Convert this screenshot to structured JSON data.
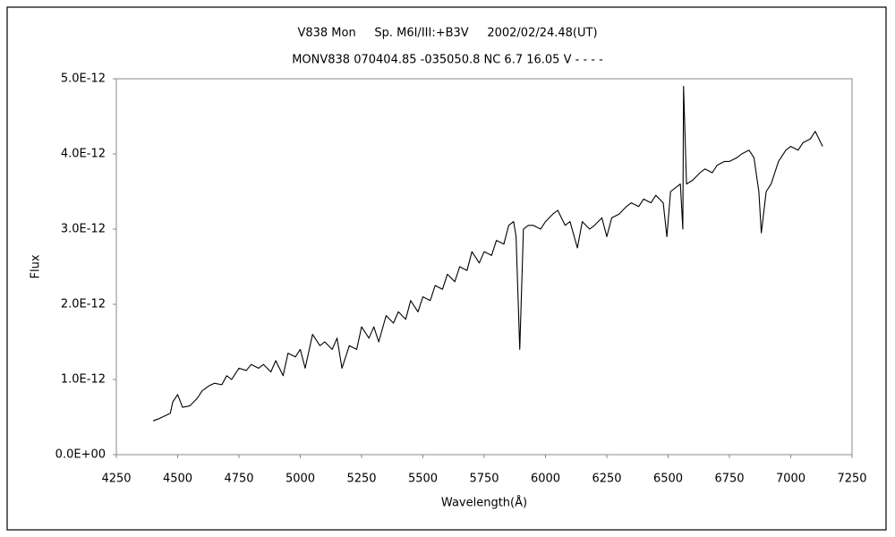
{
  "chart_data": {
    "type": "line",
    "title": "V838 Mon     Sp. M6I/III:+B3V     2002/02/24.48(UT)",
    "subtitle": "MONV838 070404.85 -035050.8 NC 6.7 16.05 V - - - -",
    "x_label": "Wavelength(Å)",
    "y_label": "Flux",
    "xlim": [
      4250,
      7250
    ],
    "xticks": [
      4250,
      4500,
      4750,
      5000,
      5250,
      5500,
      5750,
      6000,
      6250,
      6500,
      6750,
      7000,
      7250
    ],
    "ylim": [
      0,
      5e-12
    ],
    "yticks": [
      {
        "value": 0,
        "label": "0.0E+00"
      },
      {
        "value": 1e-12,
        "label": "1.0E-12"
      },
      {
        "value": 2e-12,
        "label": "2.0E-12"
      },
      {
        "value": 3e-12,
        "label": "3.0E-12"
      },
      {
        "value": 4e-12,
        "label": "4.0E-12"
      },
      {
        "value": 5e-12,
        "label": "5.0E-12"
      }
    ],
    "series": [
      {
        "color": "#000000",
        "x": [
          4400,
          4425,
          4450,
          4470,
          4480,
          4500,
          4520,
          4550,
          4580,
          4600,
          4630,
          4650,
          4680,
          4700,
          4720,
          4750,
          4780,
          4800,
          4830,
          4850,
          4880,
          4900,
          4930,
          4950,
          4980,
          5000,
          5020,
          5050,
          5080,
          5100,
          5130,
          5150,
          5170,
          5200,
          5230,
          5250,
          5280,
          5300,
          5320,
          5350,
          5380,
          5400,
          5430,
          5450,
          5480,
          5500,
          5530,
          5550,
          5580,
          5600,
          5630,
          5650,
          5680,
          5700,
          5730,
          5750,
          5780,
          5800,
          5830,
          5850,
          5870,
          5880,
          5895,
          5910,
          5930,
          5950,
          5980,
          6000,
          6030,
          6050,
          6080,
          6100,
          6130,
          6150,
          6180,
          6200,
          6230,
          6250,
          6270,
          6300,
          6330,
          6350,
          6380,
          6400,
          6430,
          6450,
          6480,
          6495,
          6510,
          6530,
          6550,
          6560,
          6563,
          6575,
          6600,
          6630,
          6650,
          6680,
          6700,
          6730,
          6750,
          6780,
          6800,
          6830,
          6850,
          6870,
          6880,
          6900,
          6920,
          6950,
          6980,
          7000,
          7030,
          7050,
          7080,
          7100,
          7130
        ],
        "values": [
          4.5e-13,
          4.8e-13,
          5.2e-13,
          5.5e-13,
          7e-13,
          8e-13,
          6.3e-13,
          6.5e-13,
          7.5e-13,
          8.5e-13,
          9.2e-13,
          9.5e-13,
          9.3e-13,
          1.05e-12,
          1e-12,
          1.15e-12,
          1.12e-12,
          1.2e-12,
          1.15e-12,
          1.2e-12,
          1.1e-12,
          1.25e-12,
          1.05e-12,
          1.35e-12,
          1.3e-12,
          1.4e-12,
          1.15e-12,
          1.6e-12,
          1.45e-12,
          1.5e-12,
          1.4e-12,
          1.55e-12,
          1.15e-12,
          1.45e-12,
          1.4e-12,
          1.7e-12,
          1.55e-12,
          1.7e-12,
          1.5e-12,
          1.85e-12,
          1.75e-12,
          1.9e-12,
          1.8e-12,
          2.05e-12,
          1.9e-12,
          2.1e-12,
          2.05e-12,
          2.25e-12,
          2.2e-12,
          2.4e-12,
          2.3e-12,
          2.5e-12,
          2.45e-12,
          2.7e-12,
          2.55e-12,
          2.7e-12,
          2.65e-12,
          2.85e-12,
          2.8e-12,
          3.05e-12,
          3.1e-12,
          2.9e-12,
          1.4e-12,
          3e-12,
          3.05e-12,
          3.05e-12,
          3e-12,
          3.1e-12,
          3.2e-12,
          3.25e-12,
          3.05e-12,
          3.1e-12,
          2.75e-12,
          3.1e-12,
          3e-12,
          3.05e-12,
          3.15e-12,
          2.9e-12,
          3.15e-12,
          3.2e-12,
          3.3e-12,
          3.35e-12,
          3.3e-12,
          3.4e-12,
          3.35e-12,
          3.45e-12,
          3.35e-12,
          2.9e-12,
          3.5e-12,
          3.55e-12,
          3.6e-12,
          3e-12,
          4.9e-12,
          3.6e-12,
          3.65e-12,
          3.75e-12,
          3.8e-12,
          3.75e-12,
          3.85e-12,
          3.9e-12,
          3.9e-12,
          3.95e-12,
          4e-12,
          4.05e-12,
          3.95e-12,
          3.5e-12,
          2.95e-12,
          3.5e-12,
          3.6e-12,
          3.9e-12,
          4.05e-12,
          4.1e-12,
          4.05e-12,
          4.15e-12,
          4.2e-12,
          4.3e-12,
          4.1e-12
        ]
      }
    ]
  }
}
